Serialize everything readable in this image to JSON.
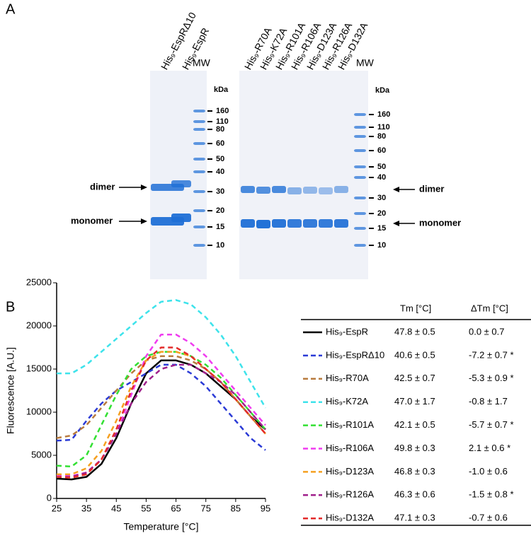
{
  "panel_labels": [
    "A",
    "B"
  ],
  "gel_left": {
    "lanes": [
      "His₉-EspRΔ10",
      "His₉-EspR"
    ],
    "mw": "MW",
    "unit": "kDa",
    "markers": [
      "160",
      "110",
      "80",
      "60",
      "50",
      "40",
      "30",
      "20",
      "15",
      "10"
    ],
    "dimer": "dimer",
    "monomer": "monomer"
  },
  "gel_right": {
    "lanes": [
      "His₉-R70A",
      "His₉-K72A",
      "His₉-R101A",
      "His₉-R106A",
      "His₉-D123A",
      "His₉-R126A",
      "His₉-D132A"
    ],
    "mw": "MW",
    "unit": "kDa",
    "markers": [
      "160",
      "110",
      "80",
      "60",
      "50",
      "40",
      "30",
      "20",
      "15",
      "10"
    ],
    "dimer": "dimer",
    "monomer": "monomer"
  },
  "chart_data": {
    "type": "line",
    "xlabel": "Temperature [°C]",
    "ylabel": "Fluorescence [A.U.]",
    "x": [
      25,
      30,
      35,
      40,
      45,
      50,
      55,
      60,
      65,
      70,
      75,
      80,
      85,
      90,
      95
    ],
    "xlim": [
      25,
      95
    ],
    "xticks": [
      25,
      35,
      45,
      55,
      65,
      75,
      85,
      95
    ],
    "ylim": [
      0,
      25000
    ],
    "yticks": [
      0,
      5000,
      10000,
      15000,
      20000,
      25000
    ],
    "series": [
      {
        "name": "His₉-EspR",
        "color": "#000000",
        "style": "solid",
        "values": [
          2300,
          2200,
          2500,
          4000,
          7000,
          11000,
          14500,
          16000,
          16000,
          15500,
          14500,
          13000,
          11500,
          9500,
          8000
        ]
      },
      {
        "name": "His₉-EspRΔ10",
        "color": "#2b3bd6",
        "style": "dashed",
        "values": [
          6700,
          6800,
          9000,
          11000,
          12500,
          13500,
          14500,
          15500,
          15500,
          14500,
          13000,
          11000,
          9000,
          7000,
          5600
        ]
      },
      {
        "name": "His₉-R70A",
        "color": "#b87b3e",
        "style": "dashed",
        "values": [
          7000,
          7300,
          8500,
          10500,
          12500,
          14500,
          16000,
          16500,
          16500,
          16000,
          15000,
          13500,
          11500,
          9500,
          7500
        ]
      },
      {
        "name": "His₉-K72A",
        "color": "#3ee3eb",
        "style": "dashed",
        "values": [
          14500,
          14500,
          15500,
          17000,
          18500,
          20000,
          21500,
          22800,
          23000,
          22500,
          21000,
          19000,
          16500,
          13500,
          10500
        ]
      },
      {
        "name": "His₉-R101A",
        "color": "#33e033",
        "style": "dashed",
        "values": [
          3800,
          3700,
          5000,
          8500,
          12000,
          15000,
          16500,
          17000,
          17000,
          16500,
          15500,
          14000,
          12000,
          10000,
          8000
        ]
      },
      {
        "name": "His₉-R106A",
        "color": "#f03cf0",
        "style": "dashed",
        "values": [
          2700,
          2600,
          3000,
          4500,
          7500,
          12000,
          16500,
          19000,
          19000,
          18000,
          16500,
          14500,
          12500,
          10500,
          8500
        ]
      },
      {
        "name": "His₉-D123A",
        "color": "#f5a020",
        "style": "dashed",
        "values": [
          2800,
          2800,
          3500,
          5500,
          9000,
          13000,
          16000,
          17000,
          17000,
          16500,
          15000,
          13500,
          11500,
          9500,
          7500
        ]
      },
      {
        "name": "His₉-R126A",
        "color": "#a0208c",
        "style": "dashed",
        "values": [
          2500,
          2500,
          3000,
          4500,
          7500,
          11000,
          13500,
          15000,
          15500,
          15500,
          14500,
          13500,
          12000,
          10000,
          8000
        ]
      },
      {
        "name": "His₉-D132A",
        "color": "#e32b2b",
        "style": "dashed",
        "values": [
          2500,
          2400,
          2800,
          4500,
          8000,
          12500,
          16000,
          17500,
          17500,
          16500,
          15000,
          13500,
          11500,
          9500,
          7500
        ]
      }
    ]
  },
  "table": {
    "headers": [
      "Tm [°C]",
      "ΔTm [°C]"
    ],
    "rows": [
      [
        "47.8 ± 0.5",
        "0.0 ± 0.7"
      ],
      [
        "40.6 ± 0.5",
        "-7.2 ± 0.7 *"
      ],
      [
        "42.5 ± 0.7",
        "-5.3 ± 0.9 *"
      ],
      [
        "47.0 ± 1.7",
        "-0.8 ± 1.7"
      ],
      [
        "42.1 ± 0.5",
        "-5.7 ± 0.7 *"
      ],
      [
        "49.8 ± 0.3",
        "2.1 ± 0.6 *"
      ],
      [
        "46.8 ± 0.3",
        "-1.0 ± 0.6"
      ],
      [
        "46.3 ± 0.6",
        "-1.5 ± 0.8 *"
      ],
      [
        "47.1 ± 0.3",
        "-0.7 ± 0.6"
      ]
    ]
  }
}
